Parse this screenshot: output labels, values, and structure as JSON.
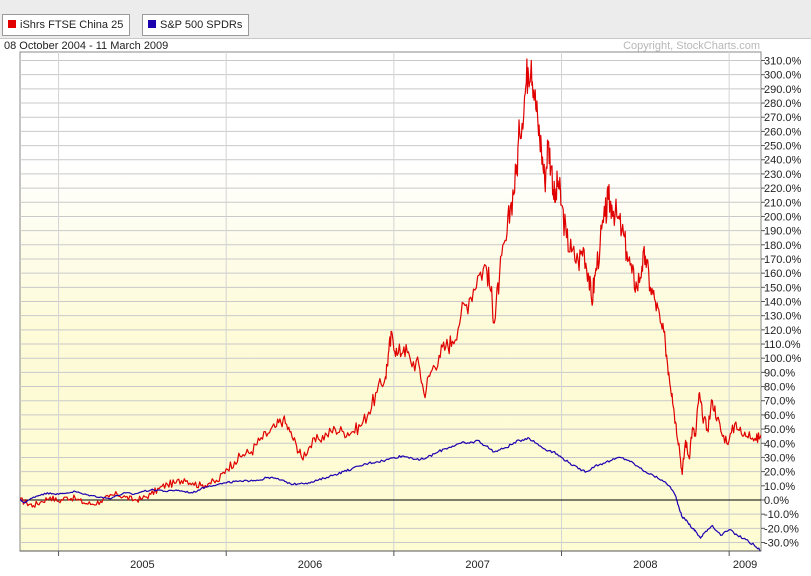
{
  "legend": {
    "items": [
      {
        "label": "iShrs FTSE China 25",
        "color": "#e00000"
      },
      {
        "label": "S&P 500 SPDRs",
        "color": "#1c00b0"
      }
    ]
  },
  "header": {
    "date_range": "08 October 2004 - 11 March 2009",
    "copyright": "Copyright, StockCharts.com"
  },
  "chart_data": {
    "type": "line",
    "title": "",
    "xlabel": "",
    "ylabel": "",
    "x_unit": "years",
    "xlim": [
      2004.77,
      2009.19
    ],
    "ylim": [
      -36,
      316
    ],
    "grid": true,
    "legend_position": "top-left",
    "background_colors": {
      "above_zero": "#fdfcd2",
      "below_zero": "#fdfcd2",
      "upper_fade": "#ffffff"
    },
    "yticks": [
      {
        "value": 310,
        "label": "310.0%"
      },
      {
        "value": 300,
        "label": "300.0%"
      },
      {
        "value": 290,
        "label": "290.0%"
      },
      {
        "value": 280,
        "label": "280.0%"
      },
      {
        "value": 270,
        "label": "270.0%"
      },
      {
        "value": 260,
        "label": "260.0%"
      },
      {
        "value": 250,
        "label": "250.0%"
      },
      {
        "value": 240,
        "label": "240.0%"
      },
      {
        "value": 230,
        "label": "230.0%"
      },
      {
        "value": 220,
        "label": "220.0%"
      },
      {
        "value": 210,
        "label": "210.0%"
      },
      {
        "value": 200,
        "label": "200.0%"
      },
      {
        "value": 190,
        "label": "190.0%"
      },
      {
        "value": 180,
        "label": "180.0%"
      },
      {
        "value": 170,
        "label": "170.0%"
      },
      {
        "value": 160,
        "label": "160.0%"
      },
      {
        "value": 150,
        "label": "150.0%"
      },
      {
        "value": 140,
        "label": "140.0%"
      },
      {
        "value": 130,
        "label": "130.0%"
      },
      {
        "value": 120,
        "label": "120.0%"
      },
      {
        "value": 110,
        "label": "110.0%"
      },
      {
        "value": 100,
        "label": "100.0%"
      },
      {
        "value": 90,
        "label": "90.0%"
      },
      {
        "value": 80,
        "label": "80.0%"
      },
      {
        "value": 70,
        "label": "70.0%"
      },
      {
        "value": 60,
        "label": "60.0%"
      },
      {
        "value": 50,
        "label": "50.0%"
      },
      {
        "value": 40,
        "label": "40.0%"
      },
      {
        "value": 30,
        "label": "30.0%"
      },
      {
        "value": 20,
        "label": "20.0%"
      },
      {
        "value": 10,
        "label": "10.0%"
      },
      {
        "value": 0,
        "label": "0.0%"
      },
      {
        "value": -10,
        "label": "-10.0%"
      },
      {
        "value": -20,
        "label": "-20.0%"
      },
      {
        "value": -30,
        "label": "-30.0%"
      }
    ],
    "xticks": [
      {
        "value": 2005.0,
        "label": "2005"
      },
      {
        "value": 2006.0,
        "label": "2006"
      },
      {
        "value": 2007.0,
        "label": "2007"
      },
      {
        "value": 2008.0,
        "label": "2008"
      },
      {
        "value": 2009.0,
        "label": "2009"
      }
    ],
    "series": [
      {
        "name": "iShrs FTSE China 25",
        "color": "#e00000",
        "points": [
          [
            2004.77,
            0
          ],
          [
            2004.81,
            -2
          ],
          [
            2004.85,
            -4
          ],
          [
            2004.9,
            -1
          ],
          [
            2004.95,
            2
          ],
          [
            2005.0,
            -1
          ],
          [
            2005.05,
            2
          ],
          [
            2005.1,
            1
          ],
          [
            2005.15,
            -2
          ],
          [
            2005.2,
            -3
          ],
          [
            2005.25,
            -1
          ],
          [
            2005.3,
            2
          ],
          [
            2005.35,
            4
          ],
          [
            2005.4,
            2
          ],
          [
            2005.45,
            0
          ],
          [
            2005.5,
            1
          ],
          [
            2005.55,
            4
          ],
          [
            2005.6,
            8
          ],
          [
            2005.65,
            11
          ],
          [
            2005.7,
            12
          ],
          [
            2005.75,
            15
          ],
          [
            2005.8,
            12
          ],
          [
            2005.85,
            10
          ],
          [
            2005.9,
            12
          ],
          [
            2005.95,
            13
          ],
          [
            2006.0,
            22
          ],
          [
            2006.05,
            27
          ],
          [
            2006.1,
            32
          ],
          [
            2006.15,
            34
          ],
          [
            2006.2,
            42
          ],
          [
            2006.25,
            47
          ],
          [
            2006.3,
            52
          ],
          [
            2006.34,
            57
          ],
          [
            2006.38,
            48
          ],
          [
            2006.42,
            38
          ],
          [
            2006.45,
            30
          ],
          [
            2006.5,
            38
          ],
          [
            2006.55,
            43
          ],
          [
            2006.6,
            46
          ],
          [
            2006.65,
            50
          ],
          [
            2006.7,
            48
          ],
          [
            2006.75,
            48
          ],
          [
            2006.8,
            52
          ],
          [
            2006.85,
            62
          ],
          [
            2006.9,
            76
          ],
          [
            2006.95,
            87
          ],
          [
            2006.97,
            105
          ],
          [
            2006.99,
            117
          ],
          [
            2007.02,
            102
          ],
          [
            2007.06,
            108
          ],
          [
            2007.1,
            98
          ],
          [
            2007.15,
            95
          ],
          [
            2007.18,
            75
          ],
          [
            2007.22,
            90
          ],
          [
            2007.27,
            102
          ],
          [
            2007.31,
            108
          ],
          [
            2007.35,
            112
          ],
          [
            2007.4,
            130
          ],
          [
            2007.45,
            142
          ],
          [
            2007.5,
            158
          ],
          [
            2007.55,
            165
          ],
          [
            2007.58,
            147
          ],
          [
            2007.6,
            125
          ],
          [
            2007.63,
            158
          ],
          [
            2007.67,
            183
          ],
          [
            2007.7,
            210
          ],
          [
            2007.73,
            230
          ],
          [
            2007.75,
            260
          ],
          [
            2007.78,
            285
          ],
          [
            2007.8,
            305
          ],
          [
            2007.82,
            310
          ],
          [
            2007.84,
            285
          ],
          [
            2007.86,
            265
          ],
          [
            2007.88,
            248
          ],
          [
            2007.9,
            225
          ],
          [
            2007.92,
            252
          ],
          [
            2007.94,
            235
          ],
          [
            2007.96,
            210
          ],
          [
            2007.98,
            225
          ],
          [
            2008.0,
            208
          ],
          [
            2008.03,
            185
          ],
          [
            2008.06,
            175
          ],
          [
            2008.1,
            168
          ],
          [
            2008.13,
            178
          ],
          [
            2008.16,
            160
          ],
          [
            2008.18,
            140
          ],
          [
            2008.2,
            158
          ],
          [
            2008.23,
            180
          ],
          [
            2008.26,
            200
          ],
          [
            2008.28,
            212
          ],
          [
            2008.3,
            208
          ],
          [
            2008.33,
            200
          ],
          [
            2008.36,
            190
          ],
          [
            2008.39,
            175
          ],
          [
            2008.42,
            160
          ],
          [
            2008.45,
            150
          ],
          [
            2008.48,
            165
          ],
          [
            2008.5,
            172
          ],
          [
            2008.53,
            150
          ],
          [
            2008.56,
            140
          ],
          [
            2008.59,
            125
          ],
          [
            2008.62,
            110
          ],
          [
            2008.64,
            90
          ],
          [
            2008.66,
            75
          ],
          [
            2008.68,
            55
          ],
          [
            2008.7,
            40
          ],
          [
            2008.72,
            18
          ],
          [
            2008.74,
            42
          ],
          [
            2008.76,
            30
          ],
          [
            2008.78,
            50
          ],
          [
            2008.8,
            45
          ],
          [
            2008.82,
            75
          ],
          [
            2008.84,
            60
          ],
          [
            2008.87,
            50
          ],
          [
            2008.9,
            70
          ],
          [
            2008.93,
            58
          ],
          [
            2008.96,
            45
          ],
          [
            2009.0,
            42
          ],
          [
            2009.04,
            55
          ],
          [
            2009.08,
            45
          ],
          [
            2009.12,
            48
          ],
          [
            2009.16,
            42
          ],
          [
            2009.19,
            46
          ]
        ]
      },
      {
        "name": "S&P 500 SPDRs",
        "color": "#1c00b0",
        "points": [
          [
            2004.77,
            0
          ],
          [
            2004.8,
            -2
          ],
          [
            2004.85,
            2
          ],
          [
            2004.9,
            4
          ],
          [
            2004.95,
            5
          ],
          [
            2005.0,
            4
          ],
          [
            2005.05,
            5
          ],
          [
            2005.1,
            6
          ],
          [
            2005.15,
            4
          ],
          [
            2005.2,
            3
          ],
          [
            2005.25,
            2
          ],
          [
            2005.3,
            1
          ],
          [
            2005.35,
            3
          ],
          [
            2005.4,
            5
          ],
          [
            2005.45,
            4
          ],
          [
            2005.5,
            6
          ],
          [
            2005.55,
            7
          ],
          [
            2005.6,
            7
          ],
          [
            2005.65,
            6
          ],
          [
            2005.7,
            7
          ],
          [
            2005.75,
            6
          ],
          [
            2005.8,
            5
          ],
          [
            2005.85,
            8
          ],
          [
            2005.9,
            10
          ],
          [
            2005.95,
            11
          ],
          [
            2006.0,
            12
          ],
          [
            2006.05,
            13
          ],
          [
            2006.1,
            13
          ],
          [
            2006.15,
            14
          ],
          [
            2006.2,
            14
          ],
          [
            2006.25,
            16
          ],
          [
            2006.3,
            15
          ],
          [
            2006.35,
            13
          ],
          [
            2006.4,
            11
          ],
          [
            2006.45,
            12
          ],
          [
            2006.5,
            12
          ],
          [
            2006.55,
            14
          ],
          [
            2006.6,
            16
          ],
          [
            2006.65,
            18
          ],
          [
            2006.7,
            20
          ],
          [
            2006.75,
            22
          ],
          [
            2006.8,
            24
          ],
          [
            2006.85,
            26
          ],
          [
            2006.9,
            27
          ],
          [
            2006.95,
            28
          ],
          [
            2007.0,
            30
          ],
          [
            2007.05,
            31
          ],
          [
            2007.1,
            30
          ],
          [
            2007.15,
            28
          ],
          [
            2007.2,
            30
          ],
          [
            2007.25,
            33
          ],
          [
            2007.3,
            36
          ],
          [
            2007.35,
            38
          ],
          [
            2007.4,
            40
          ],
          [
            2007.45,
            40
          ],
          [
            2007.5,
            42
          ],
          [
            2007.55,
            38
          ],
          [
            2007.6,
            34
          ],
          [
            2007.65,
            36
          ],
          [
            2007.7,
            39
          ],
          [
            2007.75,
            42
          ],
          [
            2007.8,
            44
          ],
          [
            2007.85,
            40
          ],
          [
            2007.9,
            36
          ],
          [
            2007.95,
            34
          ],
          [
            2008.0,
            30
          ],
          [
            2008.05,
            26
          ],
          [
            2008.1,
            22
          ],
          [
            2008.15,
            20
          ],
          [
            2008.2,
            24
          ],
          [
            2008.25,
            26
          ],
          [
            2008.3,
            28
          ],
          [
            2008.35,
            30
          ],
          [
            2008.4,
            28
          ],
          [
            2008.45,
            24
          ],
          [
            2008.5,
            20
          ],
          [
            2008.55,
            17
          ],
          [
            2008.6,
            14
          ],
          [
            2008.65,
            9
          ],
          [
            2008.68,
            3
          ],
          [
            2008.7,
            -5
          ],
          [
            2008.72,
            -12
          ],
          [
            2008.75,
            -15
          ],
          [
            2008.78,
            -20
          ],
          [
            2008.8,
            -22
          ],
          [
            2008.83,
            -27
          ],
          [
            2008.86,
            -22
          ],
          [
            2008.9,
            -18
          ],
          [
            2008.95,
            -25
          ],
          [
            2009.0,
            -21
          ],
          [
            2009.05,
            -25
          ],
          [
            2009.1,
            -28
          ],
          [
            2009.15,
            -32
          ],
          [
            2009.19,
            -36
          ]
        ]
      }
    ]
  }
}
